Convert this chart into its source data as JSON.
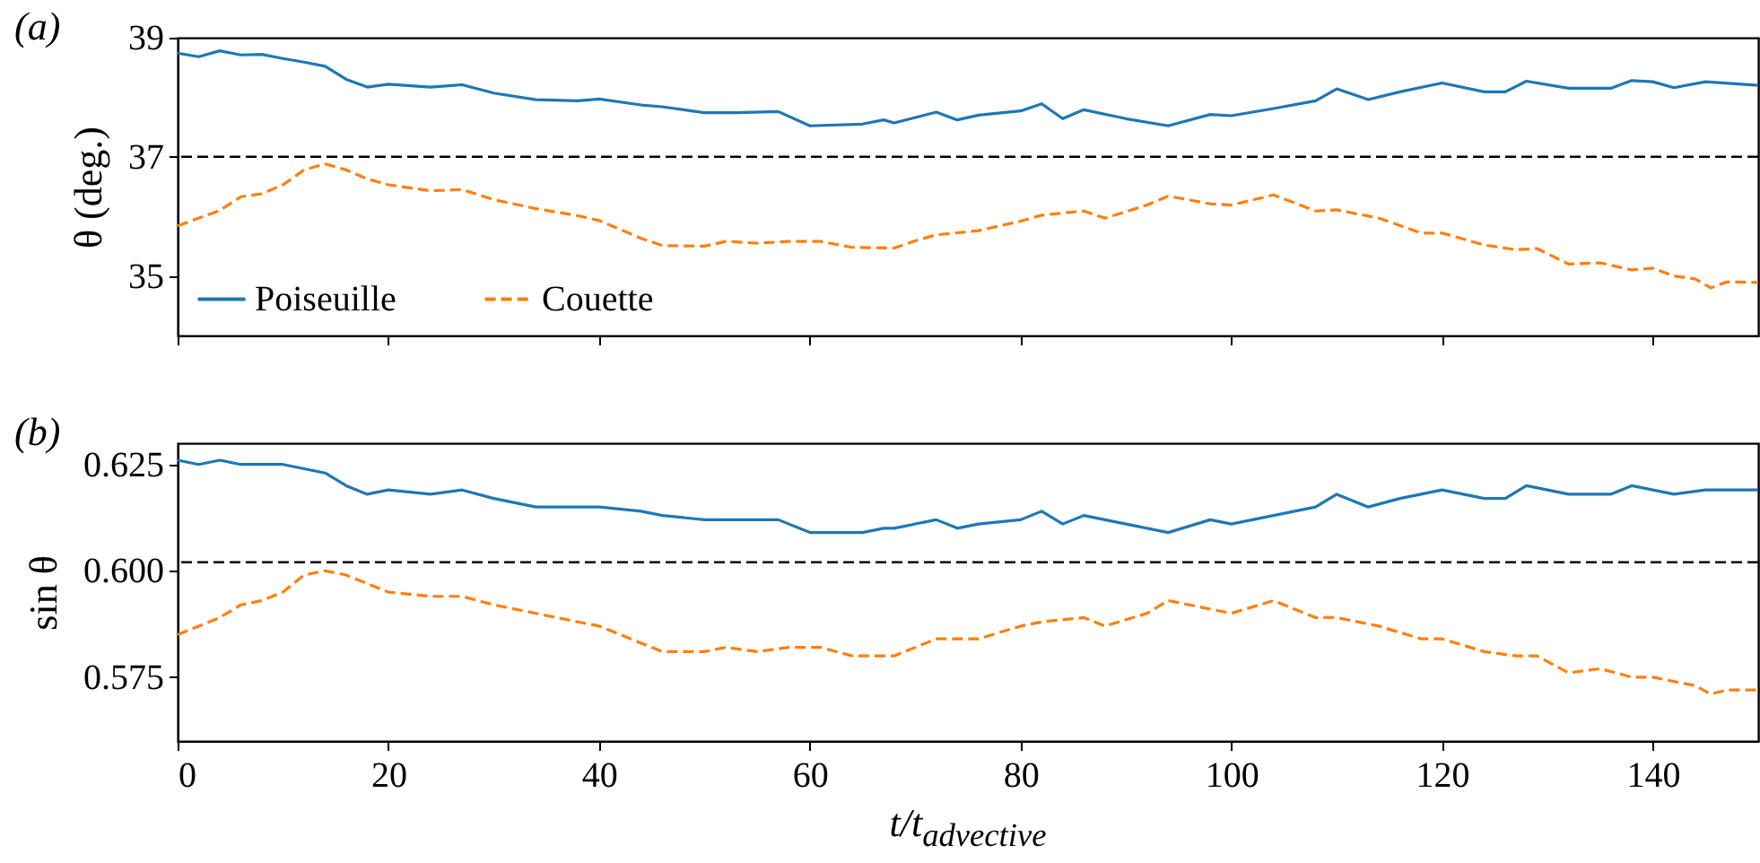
{
  "chart_data": [
    {
      "type": "line",
      "title": "(a)",
      "ylabel": "θ (deg.)",
      "xlim": [
        0,
        150
      ],
      "xticks": [
        0,
        20,
        40,
        60,
        80,
        100,
        120,
        140
      ],
      "ylim": [
        34,
        39
      ],
      "yticks": [
        35,
        37,
        39
      ],
      "tick_labels": "y",
      "legend": "bottom left",
      "ref_lines": [
        {
          "axis": "y",
          "value": 37,
          "color": "#000000",
          "line_style": "dashed"
        }
      ],
      "series": [
        {
          "name": "Poiseuille",
          "color": "#1f77b4",
          "line_style": "solid",
          "x": [
            0,
            2,
            4,
            6,
            8,
            10,
            12,
            14,
            16,
            18,
            20,
            24,
            27,
            30,
            34,
            38,
            40,
            44,
            46,
            50,
            53,
            57,
            60,
            65,
            67,
            68,
            72,
            74,
            76,
            80,
            82,
            84,
            86,
            90,
            94,
            98,
            100,
            104,
            108,
            110,
            113,
            116,
            120,
            124,
            126,
            128,
            132,
            136,
            138,
            140,
            142,
            145,
            150
          ],
          "values": [
            38.74,
            38.68,
            38.78,
            38.71,
            38.72,
            38.65,
            38.59,
            38.52,
            38.3,
            38.17,
            38.22,
            38.17,
            38.21,
            38.07,
            37.96,
            37.94,
            37.97,
            37.87,
            37.84,
            37.74,
            37.74,
            37.76,
            37.52,
            37.55,
            37.62,
            37.57,
            37.75,
            37.62,
            37.7,
            37.77,
            37.89,
            37.64,
            37.79,
            37.64,
            37.52,
            37.71,
            37.69,
            37.81,
            37.94,
            38.14,
            37.96,
            38.09,
            38.24,
            38.09,
            38.09,
            38.27,
            38.15,
            38.15,
            38.28,
            38.26,
            38.16,
            38.26,
            38.2
          ]
        },
        {
          "name": "Couette",
          "color": "#ff7f0e",
          "line_style": "dashed",
          "x": [
            0,
            4,
            6,
            8,
            10,
            12,
            14,
            16,
            18,
            20,
            24,
            27,
            30,
            34,
            38,
            40,
            44,
            46,
            50,
            52,
            55,
            58,
            61,
            64,
            68,
            70,
            72,
            76,
            80,
            82,
            86,
            88,
            92,
            94,
            98,
            100,
            104,
            108,
            110,
            114,
            118,
            120,
            124,
            127,
            129,
            132,
            135,
            138,
            140,
            142,
            144,
            145.5,
            147,
            150
          ],
          "values": [
            35.84,
            36.1,
            36.33,
            36.38,
            36.53,
            36.78,
            36.88,
            36.78,
            36.63,
            36.53,
            36.43,
            36.45,
            36.28,
            36.13,
            36.01,
            35.93,
            35.63,
            35.51,
            35.5,
            35.58,
            35.55,
            35.58,
            35.58,
            35.48,
            35.47,
            35.59,
            35.69,
            35.76,
            35.92,
            36.02,
            36.09,
            35.97,
            36.19,
            36.34,
            36.21,
            36.19,
            36.36,
            36.09,
            36.11,
            35.97,
            35.72,
            35.72,
            35.52,
            35.44,
            35.46,
            35.2,
            35.22,
            35.1,
            35.13,
            35.0,
            34.95,
            34.8,
            34.9,
            34.89
          ]
        }
      ]
    },
    {
      "type": "line",
      "title": "(b)",
      "xlabel": "t/t$_{advective}$",
      "ylabel": "sin θ",
      "xlim": [
        0,
        150
      ],
      "xticks": [
        0,
        20,
        40,
        60,
        80,
        100,
        120,
        140
      ],
      "ylim": [
        0.56,
        0.63
      ],
      "yticks": [
        0.575,
        {
          "value": 0.6,
          "label": "0.600"
        },
        0.625
      ],
      "ref_lines": [
        {
          "axis": "y",
          "value": 0.602,
          "color": "#000000",
          "line_style": "dashed"
        }
      ],
      "series": [
        {
          "color": "#1f77b4",
          "line_style": "solid",
          "x": [
            0,
            2,
            4,
            6,
            8,
            10,
            12,
            14,
            16,
            18,
            20,
            24,
            27,
            30,
            34,
            38,
            40,
            44,
            46,
            50,
            53,
            57,
            60,
            65,
            67,
            68,
            72,
            74,
            76,
            80,
            82,
            84,
            86,
            90,
            94,
            98,
            100,
            104,
            108,
            110,
            113,
            116,
            120,
            124,
            126,
            128,
            132,
            136,
            138,
            140,
            142,
            145,
            150
          ],
          "values": [
            0.626,
            0.625,
            0.626,
            0.625,
            0.625,
            0.625,
            0.624,
            0.623,
            0.62,
            0.618,
            0.619,
            0.618,
            0.619,
            0.617,
            0.615,
            0.615,
            0.615,
            0.614,
            0.613,
            0.612,
            0.612,
            0.612,
            0.609,
            0.609,
            0.61,
            0.61,
            0.612,
            0.61,
            0.611,
            0.612,
            0.614,
            0.611,
            0.613,
            0.611,
            0.609,
            0.612,
            0.611,
            0.613,
            0.615,
            0.618,
            0.615,
            0.617,
            0.619,
            0.617,
            0.617,
            0.62,
            0.618,
            0.618,
            0.62,
            0.619,
            0.618,
            0.619,
            0.619
          ]
        },
        {
          "color": "#ff7f0e",
          "line_style": "dashed",
          "x": [
            0,
            4,
            6,
            8,
            10,
            12,
            14,
            16,
            18,
            20,
            24,
            27,
            30,
            34,
            38,
            40,
            44,
            46,
            50,
            52,
            55,
            58,
            61,
            64,
            68,
            70,
            72,
            76,
            80,
            82,
            86,
            88,
            92,
            94,
            98,
            100,
            104,
            108,
            110,
            114,
            118,
            120,
            124,
            127,
            129,
            132,
            135,
            138,
            140,
            142,
            144,
            145.5,
            147,
            150
          ],
          "values": [
            0.585,
            0.589,
            0.592,
            0.593,
            0.595,
            0.599,
            0.6,
            0.599,
            0.597,
            0.595,
            0.594,
            0.594,
            0.592,
            0.59,
            0.588,
            0.587,
            0.583,
            0.581,
            0.581,
            0.582,
            0.581,
            0.582,
            0.582,
            0.58,
            0.58,
            0.582,
            0.584,
            0.584,
            0.587,
            0.588,
            0.589,
            0.587,
            0.59,
            0.593,
            0.591,
            0.59,
            0.593,
            0.589,
            0.589,
            0.587,
            0.584,
            0.584,
            0.581,
            0.58,
            0.58,
            0.576,
            0.577,
            0.575,
            0.575,
            0.574,
            0.573,
            0.571,
            0.572,
            0.572
          ]
        }
      ]
    }
  ]
}
